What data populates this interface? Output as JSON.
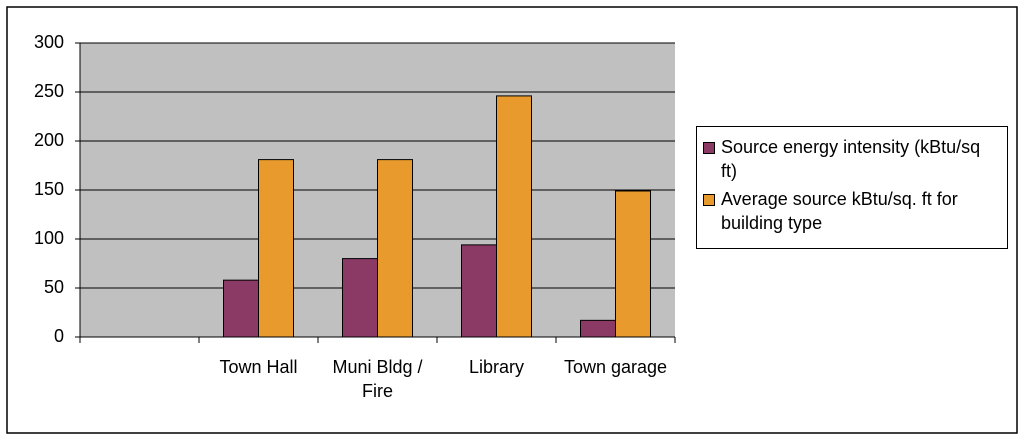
{
  "chart_data": {
    "type": "bar",
    "categories": [
      null,
      "Town Hall",
      "Muni Bldg / Fire",
      "Library",
      "Town garage"
    ],
    "series": [
      {
        "name": "Source energy intensity (kBtu/sq ft)",
        "color": "#8b3a66",
        "values": [
          null,
          58,
          80,
          94,
          17
        ]
      },
      {
        "name": "Average source kBtu/sq. ft for building type",
        "color": "#e99a2c",
        "values": [
          null,
          181,
          181,
          246,
          149
        ]
      }
    ],
    "ylim": [
      0,
      300
    ],
    "yticks": [
      0,
      50,
      100,
      150,
      200,
      250,
      300
    ],
    "grid": true,
    "legend": "right"
  }
}
